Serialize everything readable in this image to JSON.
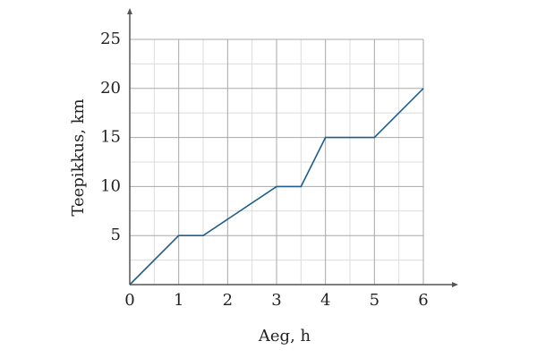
{
  "chart_data": {
    "type": "line",
    "x_label": "Aeg, h",
    "y_label": "Teepikkus, km",
    "x": [
      0,
      1,
      1.5,
      3,
      3.5,
      4,
      5,
      6
    ],
    "series": [
      {
        "color": "#1f5f8e",
        "values": [
          0,
          5,
          5,
          10,
          10,
          15,
          15,
          20
        ]
      }
    ],
    "xlim": [
      0,
      6
    ],
    "ylim": [
      0,
      25
    ],
    "xticks": [
      0,
      1,
      2,
      3,
      4,
      5,
      6
    ],
    "yticks": [
      5,
      10,
      15,
      20,
      25
    ],
    "grid": true,
    "minor_grid": true
  }
}
